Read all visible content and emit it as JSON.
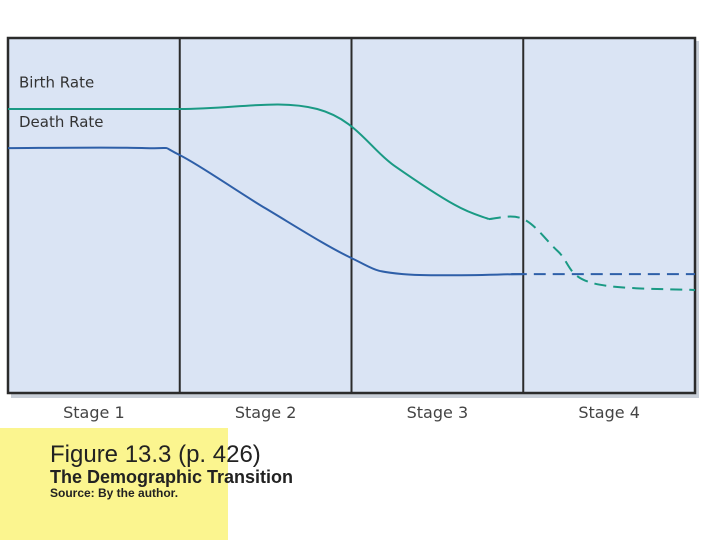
{
  "caption": {
    "title": "Figure 13.3  (p. 426)",
    "subtitle": "The Demographic Transition",
    "source": "Source: By the author."
  },
  "chart_data": {
    "type": "line",
    "title": "",
    "xlabel": "",
    "ylabel": "",
    "categories": [
      "Stage 1",
      "Stage 2",
      "Stage 3",
      "Stage 4"
    ],
    "grid": false,
    "series": [
      {
        "name": "Birth Rate",
        "color": "#1a9a84",
        "points": [
          {
            "stage": 0.0,
            "level": 0.8
          },
          {
            "stage": 1.0,
            "level": 0.8
          },
          {
            "stage": 1.8,
            "level": 0.8
          },
          {
            "stage": 2.25,
            "level": 0.64
          },
          {
            "stage": 2.6,
            "level": 0.53
          },
          {
            "stage": 2.8,
            "level": 0.49
          },
          {
            "stage": 3.0,
            "level": 0.49,
            "dashed": true
          },
          {
            "stage": 3.2,
            "level": 0.4,
            "dashed": true
          },
          {
            "stage": 3.4,
            "level": 0.31,
            "dashed": true
          },
          {
            "stage": 4.0,
            "level": 0.29,
            "dashed": true
          }
        ]
      },
      {
        "name": "Death Rate",
        "color": "#2e5fa8",
        "points": [
          {
            "stage": 0.0,
            "level": 0.69
          },
          {
            "stage": 0.8,
            "level": 0.69
          },
          {
            "stage": 1.0,
            "level": 0.67
          },
          {
            "stage": 1.5,
            "level": 0.52
          },
          {
            "stage": 2.0,
            "level": 0.38
          },
          {
            "stage": 2.3,
            "level": 0.335
          },
          {
            "stage": 3.0,
            "level": 0.335
          },
          {
            "stage": 3.0,
            "level": 0.335,
            "dashed": true
          },
          {
            "stage": 4.0,
            "level": 0.335,
            "dashed": true
          }
        ]
      }
    ],
    "colors": {
      "plot_background": "#dae4f4",
      "frame": "#2b2b2b",
      "stage_text": "#444444"
    }
  }
}
